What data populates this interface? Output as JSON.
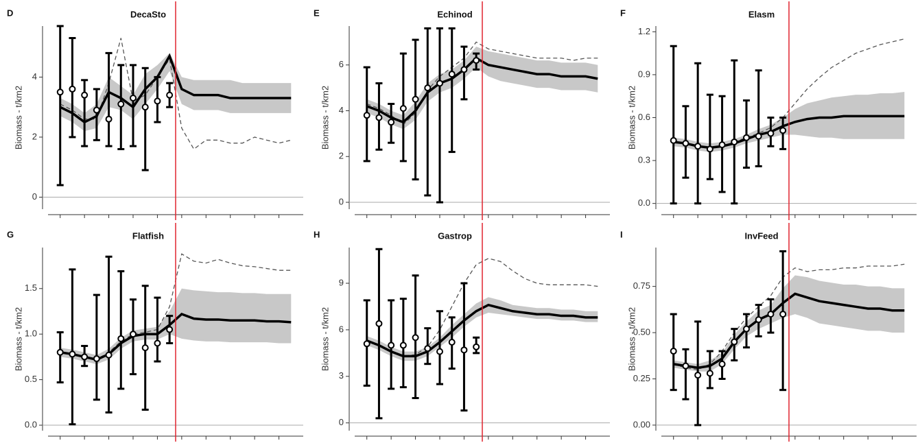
{
  "chart_data": [
    {
      "type": "line",
      "panel": "D",
      "title": "DecaSto",
      "y_label": "Biomass - t/km2",
      "xlim": [
        -1,
        20
      ],
      "xticks": [
        0,
        2,
        4,
        6,
        8,
        10,
        12,
        14,
        16,
        18
      ],
      "ylim": [
        -0.4,
        5.7
      ],
      "yticks": [
        0,
        2,
        4
      ],
      "vline": 9.5,
      "vline_color": "#e0242f",
      "x": [
        0,
        1,
        2,
        3,
        4,
        5,
        6,
        7,
        8,
        9,
        10,
        11,
        12,
        13,
        14,
        15,
        16,
        17,
        18,
        19
      ],
      "band": {
        "color": "#c8c8c8",
        "lower": [
          2.7,
          2.5,
          2.2,
          2.3,
          3.0,
          2.9,
          2.6,
          3.1,
          3.6,
          4.2,
          3.1,
          2.9,
          2.9,
          2.9,
          2.8,
          2.8,
          2.8,
          2.8,
          2.8,
          2.8
        ],
        "upper": [
          3.3,
          3.1,
          2.8,
          3.1,
          4.0,
          3.7,
          3.4,
          4.1,
          4.4,
          4.8,
          4.0,
          3.9,
          3.9,
          3.9,
          3.9,
          3.8,
          3.8,
          3.8,
          3.8,
          3.8
        ]
      },
      "series": [
        {
          "color": "#555555",
          "dash": true,
          "values": [
            3.1,
            2.9,
            2.6,
            2.6,
            3.8,
            5.3,
            3.2,
            3.4,
            4.0,
            4.6,
            2.3,
            1.6,
            1.9,
            1.9,
            1.8,
            1.8,
            2.0,
            1.9,
            1.8,
            1.9
          ]
        },
        {
          "color": "#000000",
          "dash": false,
          "values": [
            3.0,
            2.8,
            2.5,
            2.7,
            3.5,
            3.3,
            3.0,
            3.6,
            4.0,
            4.7,
            3.6,
            3.4,
            3.4,
            3.4,
            3.3,
            3.3,
            3.3,
            3.3,
            3.3,
            3.3
          ]
        }
      ],
      "observed": {
        "x": [
          0,
          1,
          2,
          3,
          4,
          5,
          6,
          7,
          8,
          9
        ],
        "values": [
          3.5,
          3.6,
          3.4,
          2.9,
          2.6,
          3.1,
          3.3,
          3.0,
          3.2,
          3.4
        ],
        "err_low": [
          0.4,
          2.0,
          1.7,
          1.9,
          1.7,
          1.6,
          1.7,
          0.9,
          2.5,
          3.0
        ],
        "err_high": [
          5.7,
          5.3,
          3.9,
          3.6,
          4.8,
          4.4,
          4.4,
          4.3,
          4.0,
          3.8
        ]
      }
    },
    {
      "type": "line",
      "panel": "E",
      "title": "Echinod",
      "y_label": "Biomass - t/km2",
      "xlim": [
        -1,
        20
      ],
      "xticks": [
        0,
        2,
        4,
        6,
        8,
        10,
        12,
        14,
        16,
        18
      ],
      "ylim": [
        -0.3,
        7.7
      ],
      "yticks": [
        0,
        2,
        4,
        6
      ],
      "vline": 9.5,
      "vline_color": "#e0242f",
      "x": [
        0,
        1,
        2,
        3,
        4,
        5,
        6,
        7,
        8,
        9,
        10,
        11,
        12,
        13,
        14,
        15,
        16,
        17,
        18,
        19
      ],
      "band": {
        "color": "#c8c8c8",
        "lower": [
          3.9,
          3.7,
          3.4,
          3.2,
          3.6,
          4.4,
          4.8,
          5.0,
          5.4,
          5.9,
          5.5,
          5.3,
          5.2,
          5.1,
          5.0,
          5.0,
          4.9,
          4.9,
          4.9,
          4.8
        ],
        "upper": [
          4.5,
          4.3,
          4.0,
          3.8,
          4.4,
          5.2,
          5.6,
          5.8,
          6.2,
          6.8,
          6.6,
          6.5,
          6.4,
          6.3,
          6.2,
          6.2,
          6.1,
          6.1,
          6.1,
          6.0
        ]
      },
      "series": [
        {
          "color": "#555555",
          "dash": true,
          "values": [
            4.3,
            4.1,
            3.8,
            3.4,
            3.9,
            4.9,
            5.5,
            5.9,
            6.3,
            7.0,
            6.7,
            6.6,
            6.5,
            6.4,
            6.3,
            6.3,
            6.3,
            6.2,
            6.3,
            6.3
          ]
        },
        {
          "color": "#000000",
          "dash": false,
          "values": [
            4.2,
            4.0,
            3.7,
            3.5,
            4.0,
            4.8,
            5.2,
            5.4,
            5.8,
            6.3,
            6.0,
            5.9,
            5.8,
            5.7,
            5.6,
            5.6,
            5.5,
            5.5,
            5.5,
            5.4
          ]
        }
      ],
      "observed": {
        "x": [
          0,
          1,
          2,
          3,
          4,
          5,
          6,
          7,
          8,
          9
        ],
        "values": [
          3.8,
          3.7,
          3.5,
          4.1,
          4.5,
          5.0,
          5.2,
          5.6,
          5.8,
          6.2
        ],
        "err_low": [
          1.8,
          2.3,
          2.6,
          1.8,
          1.0,
          0.3,
          0.0,
          2.2,
          4.5,
          5.8
        ],
        "err_high": [
          5.9,
          5.2,
          4.3,
          6.5,
          7.1,
          7.6,
          7.6,
          7.6,
          6.8,
          6.5
        ]
      }
    },
    {
      "type": "line",
      "panel": "F",
      "title": "Elasm",
      "y_label": "Biomass - t/km2",
      "xlim": [
        -1,
        20
      ],
      "xticks": [
        0,
        2,
        4,
        6,
        8,
        10,
        12,
        14,
        16,
        18
      ],
      "ylim": [
        -0.04,
        1.24
      ],
      "yticks": [
        {
          "value": 0,
          "label": "0.0"
        },
        0.3,
        0.6,
        0.9,
        1.2
      ],
      "vline": 9.5,
      "vline_color": "#e0242f",
      "x": [
        0,
        1,
        2,
        3,
        4,
        5,
        6,
        7,
        8,
        9,
        10,
        11,
        12,
        13,
        14,
        15,
        16,
        17,
        18,
        19
      ],
      "band": {
        "color": "#c8c8c8",
        "lower": [
          0.4,
          0.39,
          0.37,
          0.36,
          0.37,
          0.39,
          0.42,
          0.44,
          0.46,
          0.48,
          0.48,
          0.47,
          0.46,
          0.46,
          0.45,
          0.45,
          0.45,
          0.45,
          0.45,
          0.45
        ],
        "upper": [
          0.46,
          0.45,
          0.43,
          0.42,
          0.43,
          0.45,
          0.48,
          0.52,
          0.55,
          0.6,
          0.66,
          0.7,
          0.72,
          0.74,
          0.75,
          0.76,
          0.76,
          0.77,
          0.77,
          0.78
        ]
      },
      "series": [
        {
          "color": "#555555",
          "dash": true,
          "values": [
            0.43,
            0.42,
            0.4,
            0.39,
            0.4,
            0.43,
            0.46,
            0.49,
            0.53,
            0.6,
            0.7,
            0.8,
            0.88,
            0.95,
            1.0,
            1.05,
            1.08,
            1.11,
            1.13,
            1.15
          ]
        },
        {
          "color": "#000000",
          "dash": false,
          "values": [
            0.43,
            0.42,
            0.4,
            0.39,
            0.4,
            0.42,
            0.45,
            0.48,
            0.5,
            0.54,
            0.57,
            0.59,
            0.6,
            0.6,
            0.61,
            0.61,
            0.61,
            0.61,
            0.61,
            0.61
          ]
        }
      ],
      "observed": {
        "x": [
          0,
          1,
          2,
          3,
          4,
          5,
          6,
          7,
          8,
          9
        ],
        "values": [
          0.44,
          0.42,
          0.4,
          0.38,
          0.41,
          0.43,
          0.46,
          0.47,
          0.49,
          0.51
        ],
        "err_low": [
          0,
          0.18,
          0,
          0.17,
          0.08,
          0,
          0.25,
          0.26,
          0.4,
          0.38
        ],
        "err_high": [
          1.1,
          0.68,
          0.98,
          0.76,
          0.75,
          1.0,
          0.72,
          0.93,
          0.6,
          0.6
        ]
      }
    },
    {
      "type": "line",
      "panel": "G",
      "title": "Flatfish",
      "y_label": "Biomass - t/km2",
      "xlim": [
        -1,
        20
      ],
      "xticks": [
        0,
        2,
        4,
        6,
        8,
        10,
        12,
        14,
        16,
        18
      ],
      "ylim": [
        -0.06,
        1.95
      ],
      "yticks": [
        {
          "value": 0,
          "label": "0.0"
        },
        0.5,
        {
          "value": 1,
          "label": "1.0"
        },
        1.5
      ],
      "vline": 9.5,
      "vline_color": "#e0242f",
      "x": [
        0,
        1,
        2,
        3,
        4,
        5,
        6,
        7,
        8,
        9,
        10,
        11,
        12,
        13,
        14,
        15,
        16,
        17,
        18,
        19
      ],
      "band": {
        "color": "#c8c8c8",
        "lower": [
          0.75,
          0.73,
          0.7,
          0.67,
          0.72,
          0.84,
          0.92,
          0.94,
          0.94,
          1.0,
          0.95,
          0.93,
          0.92,
          0.92,
          0.91,
          0.91,
          0.91,
          0.91,
          0.9,
          0.9
        ],
        "upper": [
          0.85,
          0.83,
          0.8,
          0.77,
          0.84,
          0.96,
          1.04,
          1.06,
          1.08,
          1.25,
          1.5,
          1.48,
          1.47,
          1.46,
          1.46,
          1.45,
          1.45,
          1.44,
          1.44,
          1.44
        ]
      },
      "series": [
        {
          "color": "#555555",
          "dash": true,
          "values": [
            0.8,
            0.78,
            0.75,
            0.72,
            0.8,
            0.92,
            1.0,
            1.02,
            1.05,
            1.3,
            1.88,
            1.8,
            1.78,
            1.82,
            1.78,
            1.75,
            1.74,
            1.72,
            1.7,
            1.7
          ]
        },
        {
          "color": "#000000",
          "dash": false,
          "values": [
            0.8,
            0.78,
            0.75,
            0.72,
            0.78,
            0.9,
            0.98,
            1.0,
            1.0,
            1.1,
            1.22,
            1.17,
            1.16,
            1.16,
            1.15,
            1.15,
            1.15,
            1.14,
            1.14,
            1.13
          ]
        }
      ],
      "observed": {
        "x": [
          0,
          1,
          2,
          3,
          4,
          5,
          6,
          7,
          8,
          9
        ],
        "values": [
          0.8,
          0.78,
          0.75,
          0.73,
          0.77,
          0.95,
          1.0,
          0.85,
          0.9,
          1.05
        ],
        "err_low": [
          0.47,
          0.01,
          0.65,
          0.28,
          0.14,
          0.4,
          0.56,
          0.17,
          0.7,
          0.9
        ],
        "err_high": [
          1.02,
          1.71,
          0.87,
          1.43,
          1.85,
          1.69,
          1.38,
          1.53,
          1.4,
          1.2
        ]
      }
    },
    {
      "type": "line",
      "panel": "H",
      "title": "Gastrop",
      "y_label": "Biomass - t/km2",
      "xlim": [
        -1,
        20
      ],
      "xticks": [
        0,
        2,
        4,
        6,
        8,
        10,
        12,
        14,
        16,
        18
      ],
      "ylim": [
        -0.5,
        11.3
      ],
      "yticks": [
        0,
        3,
        6,
        9
      ],
      "vline": 9.5,
      "vline_color": "#e0242f",
      "x": [
        0,
        1,
        2,
        3,
        4,
        5,
        6,
        7,
        8,
        9,
        10,
        11,
        12,
        13,
        14,
        15,
        16,
        17,
        18,
        19
      ],
      "band": {
        "color": "#c8c8c8",
        "lower": [
          5.0,
          4.7,
          4.3,
          4.0,
          4.0,
          4.3,
          4.9,
          5.5,
          6.2,
          6.8,
          7.1,
          7.0,
          6.9,
          6.8,
          6.7,
          6.7,
          6.6,
          6.6,
          6.5,
          6.5
        ],
        "upper": [
          5.6,
          5.3,
          4.9,
          4.6,
          4.6,
          4.9,
          5.5,
          6.3,
          7.0,
          7.7,
          8.1,
          7.9,
          7.6,
          7.5,
          7.4,
          7.4,
          7.3,
          7.3,
          7.2,
          7.2
        ]
      },
      "series": [
        {
          "color": "#555555",
          "dash": true,
          "values": [
            5.3,
            5.0,
            4.6,
            4.3,
            4.4,
            4.9,
            6.0,
            7.5,
            9.0,
            10.2,
            10.6,
            10.4,
            9.8,
            9.3,
            9.0,
            8.9,
            8.9,
            8.9,
            8.9,
            8.8
          ]
        },
        {
          "color": "#000000",
          "dash": false,
          "values": [
            5.3,
            5.0,
            4.6,
            4.3,
            4.3,
            4.6,
            5.2,
            5.9,
            6.6,
            7.2,
            7.6,
            7.4,
            7.2,
            7.1,
            7.0,
            7.0,
            6.9,
            6.9,
            6.8,
            6.8
          ]
        }
      ],
      "observed": {
        "x": [
          0,
          1,
          2,
          3,
          4,
          5,
          6,
          7,
          8,
          9
        ],
        "values": [
          5.1,
          6.4,
          5.0,
          5.0,
          5.5,
          4.8,
          4.6,
          5.2,
          4.7,
          4.9
        ],
        "err_low": [
          2.4,
          0.3,
          2.2,
          2.3,
          1.6,
          3.8,
          2.5,
          3.5,
          0.8,
          4.5
        ],
        "err_high": [
          7.9,
          11.2,
          7.9,
          8.0,
          9.5,
          6.1,
          7.2,
          6.8,
          9.0,
          5.5
        ]
      }
    },
    {
      "type": "line",
      "panel": "I",
      "title": "InvFeed",
      "y_label": "Biomass - t/km2",
      "xlim": [
        -1,
        20
      ],
      "xticks": [
        0,
        2,
        4,
        6,
        8,
        10,
        12,
        14,
        16,
        18
      ],
      "ylim": [
        -0.03,
        0.96
      ],
      "yticks": [
        {
          "value": 0,
          "label": "0.00"
        },
        0.25,
        {
          "value": 0.5,
          "label": "0.50"
        },
        0.75
      ],
      "vline": 9.5,
      "vline_color": "#e0242f",
      "x": [
        0,
        1,
        2,
        3,
        4,
        5,
        6,
        7,
        8,
        9,
        10,
        11,
        12,
        13,
        14,
        15,
        16,
        17,
        18,
        19
      ],
      "band": {
        "color": "#c8c8c8",
        "lower": [
          0.31,
          0.3,
          0.29,
          0.29,
          0.33,
          0.41,
          0.48,
          0.52,
          0.55,
          0.58,
          0.6,
          0.58,
          0.55,
          0.54,
          0.53,
          0.52,
          0.51,
          0.51,
          0.5,
          0.5
        ],
        "upper": [
          0.35,
          0.34,
          0.33,
          0.35,
          0.39,
          0.49,
          0.56,
          0.62,
          0.65,
          0.74,
          0.81,
          0.8,
          0.78,
          0.77,
          0.76,
          0.76,
          0.75,
          0.75,
          0.74,
          0.74
        ]
      },
      "series": [
        {
          "color": "#555555",
          "dash": true,
          "values": [
            0.33,
            0.31,
            0.3,
            0.33,
            0.4,
            0.5,
            0.58,
            0.64,
            0.7,
            0.8,
            0.85,
            0.83,
            0.84,
            0.84,
            0.85,
            0.85,
            0.86,
            0.86,
            0.86,
            0.87
          ]
        },
        {
          "color": "#000000",
          "dash": false,
          "values": [
            0.33,
            0.32,
            0.31,
            0.32,
            0.36,
            0.45,
            0.52,
            0.57,
            0.6,
            0.66,
            0.71,
            0.69,
            0.67,
            0.66,
            0.65,
            0.64,
            0.63,
            0.63,
            0.62,
            0.62
          ]
        }
      ],
      "observed": {
        "x": [
          0,
          1,
          2,
          3,
          4,
          5,
          6,
          7,
          8,
          9
        ],
        "values": [
          0.4,
          0.32,
          0.27,
          0.28,
          0.33,
          0.45,
          0.52,
          0.57,
          0.6,
          0.6
        ],
        "err_low": [
          0.19,
          0.14,
          0,
          0.2,
          0.25,
          0.35,
          0.42,
          0.48,
          0.5,
          0.19
        ],
        "err_high": [
          0.6,
          0.41,
          0.56,
          0.4,
          0.4,
          0.52,
          0.6,
          0.65,
          0.68,
          0.94
        ]
      }
    }
  ]
}
